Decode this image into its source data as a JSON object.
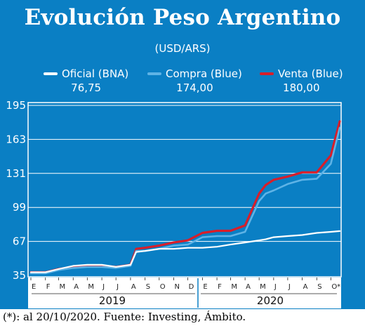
{
  "title": "Evolución Peso Argentino",
  "subtitle": "(USD/ARS)",
  "legend": [
    {
      "name": "Oficial (BNA)",
      "value": "76,75",
      "color": "#ffffff"
    },
    {
      "name": "Compra (Blue)",
      "value": "174,00",
      "color": "#5eb3e6"
    },
    {
      "name": "Venta (Blue)",
      "value": "180,00",
      "color": "#d81e2a"
    }
  ],
  "footnote": "(*): al 20/10/2020. Fuente: Investing, Ámbito.",
  "colors": {
    "background": "#0a7fc4",
    "grid": "#ffffff",
    "oficial": "#ffffff",
    "compra": "#5eb3e6",
    "venta": "#d81e2a"
  },
  "chart_data": {
    "type": "line",
    "title": "Evolución Peso Argentino",
    "subtitle": "(USD/ARS)",
    "y_ticks": [
      "195",
      "163",
      "131",
      "99",
      "67",
      "35"
    ],
    "ylim": [
      35,
      195
    ],
    "x_labels": [
      "E",
      "F",
      "M",
      "A",
      "M",
      "J",
      "J",
      "A",
      "S",
      "O",
      "N",
      "D",
      "E",
      "F",
      "M",
      "A",
      "M",
      "J",
      "J",
      "A",
      "S",
      "O*"
    ],
    "years": [
      "2019",
      "2020"
    ],
    "x": [
      "2019-01",
      "2019-02",
      "2019-03",
      "2019-04",
      "2019-05",
      "2019-06",
      "2019-07",
      "2019-08-01",
      "2019-08-13",
      "2019-09",
      "2019-10",
      "2019-11",
      "2019-12",
      "2020-01",
      "2020-02",
      "2020-03",
      "2020-04",
      "2020-05-01",
      "2020-05-15",
      "2020-06",
      "2020-07",
      "2020-08",
      "2020-09",
      "2020-10-01",
      "2020-10-20"
    ],
    "grid": true,
    "series": [
      {
        "name": "Oficial (BNA)",
        "values": [
          38,
          38,
          41,
          44,
          45,
          45,
          43,
          45,
          57,
          58,
          60,
          60,
          61,
          61,
          62,
          64,
          66,
          68,
          69,
          71,
          72,
          73,
          75,
          76,
          76.75
        ]
      },
      {
        "name": "Compra (Blue)",
        "values": [
          37,
          37,
          40,
          42,
          43,
          43,
          42,
          44,
          58,
          58,
          60,
          63,
          64,
          71,
          72,
          72,
          76,
          105,
          112,
          115,
          121,
          125,
          126,
          140,
          174
        ]
      },
      {
        "name": "Venta (Blue)",
        "values": [
          38,
          38,
          41,
          43,
          44,
          44,
          43,
          45,
          60,
          61,
          63,
          66,
          68,
          75,
          77,
          77,
          82,
          112,
          120,
          125,
          128,
          132,
          132,
          148,
          180
        ]
      }
    ]
  }
}
